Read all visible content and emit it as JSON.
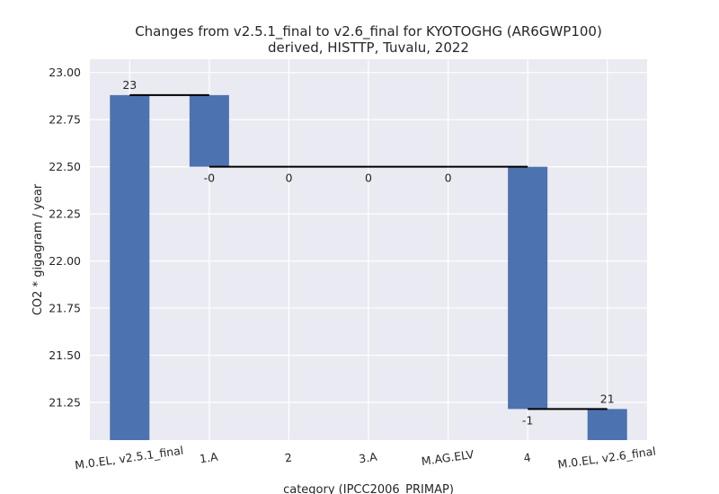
{
  "chart_data": {
    "type": "bar",
    "title": "Changes from v2.5.1_final to v2.6_final for KYOTOGHG (AR6GWP100)",
    "subtitle": "derived, HISTTP, Tuvalu, 2022",
    "xlabel": "category (IPCC2006_PRIMAP)",
    "ylabel": "CO2 * gigagram / year",
    "ylim": [
      21.05,
      23.07
    ],
    "yticks": [
      "23.00",
      "22.75",
      "22.50",
      "22.25",
      "22.00",
      "21.75",
      "21.50",
      "21.25"
    ],
    "ytick_values": [
      23.0,
      22.75,
      22.5,
      22.25,
      22.0,
      21.75,
      21.5,
      21.25
    ],
    "grid": true,
    "categories": [
      "M.0.EL, v2.5.1_final",
      "1.A",
      "2",
      "3.A",
      "M.AG.ELV",
      "4",
      "M.0.EL, v2.6_final"
    ],
    "bar_bottoms": [
      21.05,
      22.5,
      22.5,
      22.5,
      22.5,
      21.215,
      21.05
    ],
    "bar_tops": [
      22.88,
      22.88,
      22.5,
      22.5,
      22.5,
      22.5,
      21.215
    ],
    "data_labels": [
      "23",
      "-0",
      "0",
      "0",
      "0",
      "-1",
      "21"
    ],
    "label_positions": [
      "above",
      "below",
      "below",
      "below",
      "below",
      "below",
      "above"
    ],
    "connector_levels": [
      22.88,
      22.5,
      22.5,
      22.5,
      22.5,
      21.215
    ],
    "bar_color": "#4c72b0",
    "plot_background": "#eaeaf2",
    "grid_color": "#ffffff"
  }
}
